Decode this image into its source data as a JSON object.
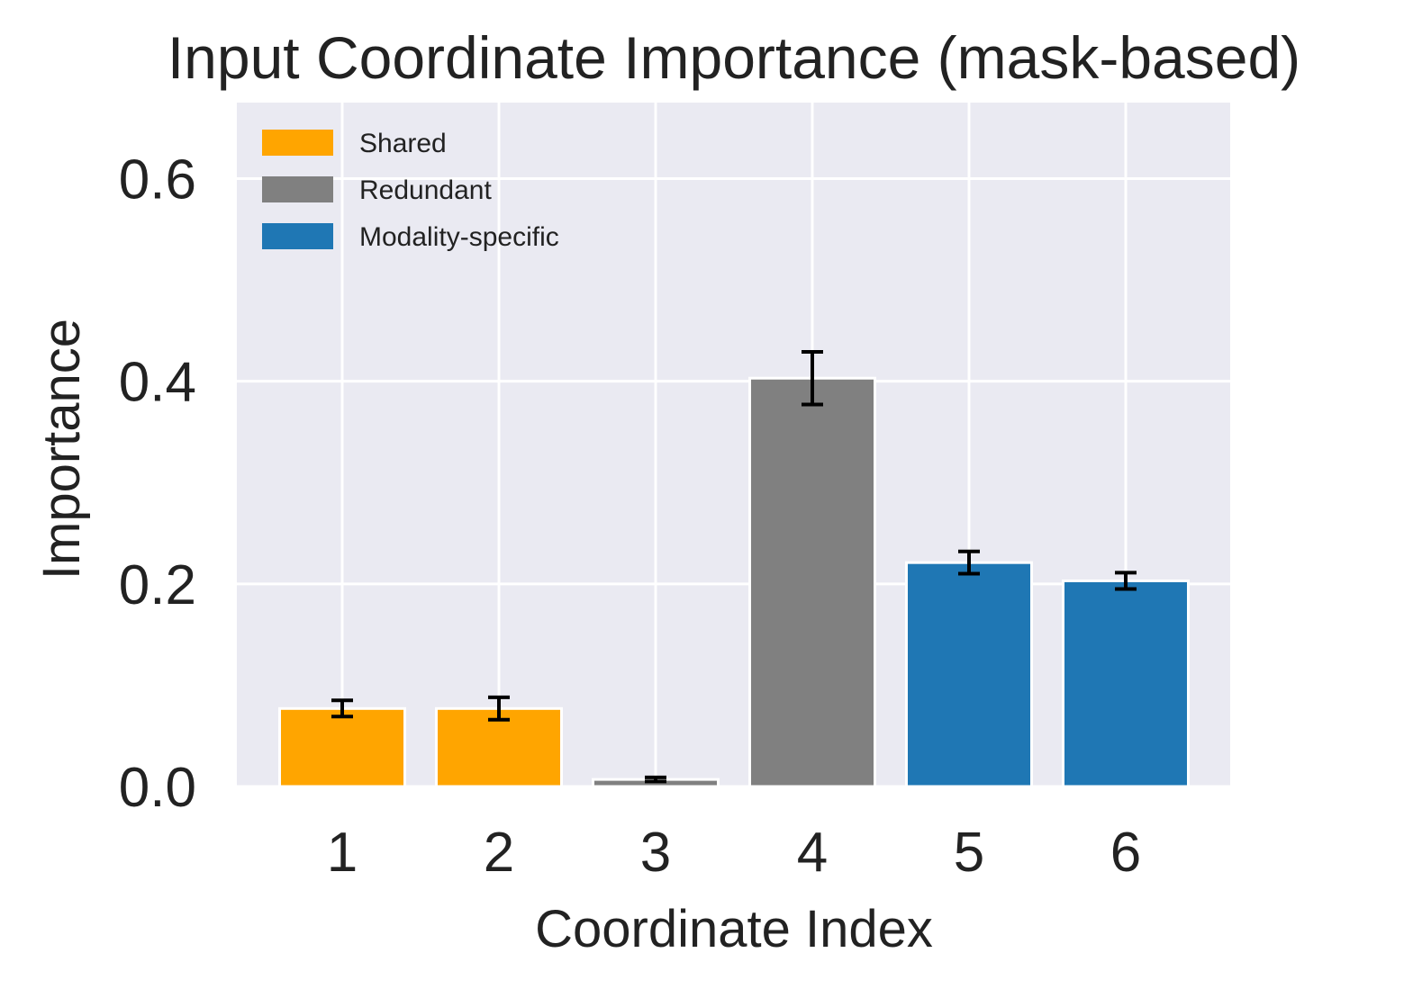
{
  "chart_data": {
    "type": "bar",
    "title": "Input Coordinate Importance (mask-based)",
    "xlabel": "Coordinate Index",
    "ylabel": "Importance",
    "ylim": [
      0,
      0.675
    ],
    "yticks": [
      "0.0",
      "0.2",
      "0.4",
      "0.6"
    ],
    "grid": true,
    "legend_position": "top-left",
    "categories": [
      "1",
      "2",
      "3",
      "4",
      "5",
      "6"
    ],
    "values": [
      0.077,
      0.077,
      0.007,
      0.403,
      0.221,
      0.203
    ],
    "errors": [
      0.008,
      0.011,
      0.002,
      0.026,
      0.011,
      0.008
    ],
    "groups": [
      "Shared",
      "Shared",
      "Redundant",
      "Redundant",
      "Modality-specific",
      "Modality-specific"
    ],
    "legend": [
      {
        "name": "Shared",
        "color": "#FFA500"
      },
      {
        "name": "Redundant",
        "color": "#808080"
      },
      {
        "name": "Modality-specific",
        "color": "#1F77B4"
      }
    ],
    "colors": {
      "plot_background": "#EAEAF2",
      "grid": "#FFFFFF",
      "bar_edge": "#FFFFFF",
      "error_bar": "#000000"
    }
  }
}
